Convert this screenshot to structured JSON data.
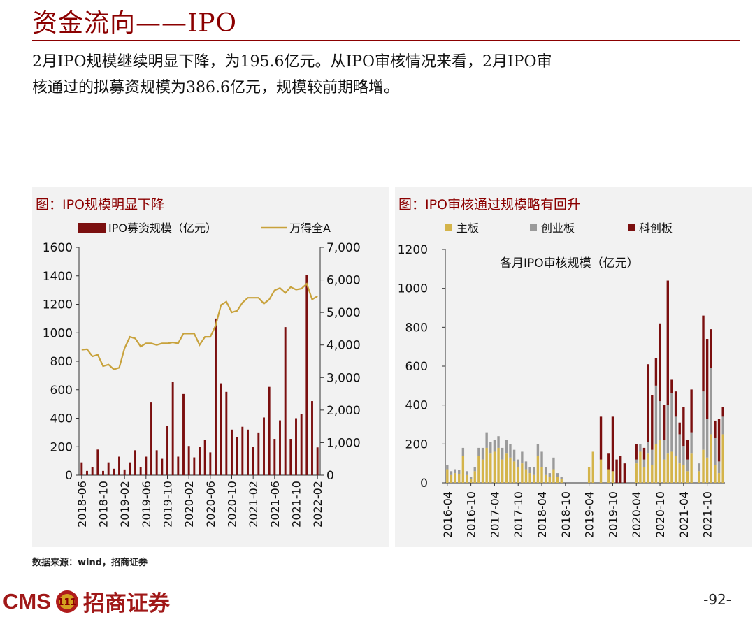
{
  "header": {
    "title": "资金流向——IPO",
    "summary_line1": "2月IPO规模继续明显下降，为195.6亿元。从IPO审核情况来看，2月IPO审",
    "summary_line2": "核通过的拟募资规模为386.6亿元，规模较前期略增。"
  },
  "footer": {
    "source": "数据来源：wind，招商证券",
    "logo_text": "CMS",
    "logo_badge": "111",
    "brand_name": "招商证券",
    "page_number": "-92-"
  },
  "colors": {
    "brand": "#8b0000",
    "bar": "#7b0f0f",
    "line": "#c8a23c",
    "main_board": "#d4b44a",
    "chinext": "#9a9a9a",
    "star": "#7b0f0f"
  },
  "chart_data": [
    {
      "type": "bar",
      "title": "图：IPO规模明显下降",
      "legend_bar": "IPO募资规模（亿元）",
      "legend_line": "万得全A",
      "left_ylim": [
        0,
        1600
      ],
      "left_ticks": [
        "0",
        "200",
        "400",
        "600",
        "800",
        "1000",
        "1200",
        "1400",
        "1600"
      ],
      "right_ylim": [
        0,
        7000
      ],
      "right_ticks": [
        "0",
        "1,000",
        "2,000",
        "3,000",
        "4,000",
        "5,000",
        "6,000",
        "7,000"
      ],
      "xticks": [
        "2018-06",
        "2018-10",
        "2019-02",
        "2019-06",
        "2019-10",
        "2020-02",
        "2020-06",
        "2020-10",
        "2021-02",
        "2021-06",
        "2021-10",
        "2022-02"
      ],
      "categories": [
        "2018-06",
        "2018-07",
        "2018-08",
        "2018-09",
        "2018-10",
        "2018-11",
        "2018-12",
        "2019-01",
        "2019-02",
        "2019-03",
        "2019-04",
        "2019-05",
        "2019-06",
        "2019-07",
        "2019-08",
        "2019-09",
        "2019-10",
        "2019-11",
        "2019-12",
        "2020-01",
        "2020-02",
        "2020-03",
        "2020-04",
        "2020-05",
        "2020-06",
        "2020-07",
        "2020-08",
        "2020-09",
        "2020-10",
        "2020-11",
        "2020-12",
        "2021-01",
        "2021-02",
        "2021-03",
        "2021-04",
        "2021-05",
        "2021-06",
        "2021-07",
        "2021-08",
        "2021-09",
        "2021-10",
        "2021-11",
        "2021-12",
        "2022-01",
        "2022-02"
      ],
      "bar_values": [
        90,
        30,
        55,
        180,
        30,
        90,
        45,
        130,
        40,
        90,
        175,
        55,
        130,
        510,
        175,
        115,
        345,
        655,
        130,
        570,
        205,
        125,
        200,
        250,
        160,
        1100,
        645,
        585,
        320,
        265,
        340,
        320,
        200,
        300,
        405,
        620,
        255,
        385,
        1040,
        255,
        400,
        430,
        1405,
        520,
        195
      ],
      "line_values": [
        3850,
        3870,
        3650,
        3700,
        3350,
        3400,
        3250,
        3300,
        3900,
        4250,
        4200,
        3950,
        4050,
        4050,
        4000,
        4050,
        4050,
        4080,
        4050,
        4350,
        4350,
        4350,
        4000,
        4250,
        4250,
        4600,
        5230,
        5330,
        5000,
        5050,
        5300,
        5450,
        5450,
        5450,
        5270,
        5400,
        5680,
        5750,
        5600,
        5780,
        5700,
        5730,
        5880,
        5400,
        5500
      ]
    },
    {
      "type": "bar",
      "stacked": true,
      "title": "图：IPO审核通过规模略有回升",
      "subtitle": "各月IPO审核规模（亿元）",
      "legend": [
        "主板",
        "创业板",
        "科创板"
      ],
      "ylim": [
        0,
        1200
      ],
      "yticks": [
        "0",
        "200",
        "400",
        "600",
        "800",
        "1000",
        "1200"
      ],
      "xticks": [
        "2016-04",
        "2016-10",
        "2017-04",
        "2017-10",
        "2018-04",
        "2018-10",
        "2019-04",
        "2019-10",
        "2020-04",
        "2020-10",
        "2021-04",
        "2021-10"
      ],
      "categories": [
        "2016-04",
        "2016-05",
        "2016-06",
        "2016-07",
        "2016-08",
        "2016-09",
        "2016-10",
        "2016-11",
        "2016-12",
        "2017-01",
        "2017-02",
        "2017-03",
        "2017-04",
        "2017-05",
        "2017-06",
        "2017-07",
        "2017-08",
        "2017-09",
        "2017-10",
        "2017-11",
        "2017-12",
        "2018-01",
        "2018-02",
        "2018-03",
        "2018-04",
        "2018-05",
        "2018-06",
        "2018-07",
        "2018-08",
        "2018-09",
        "2018-10",
        "2018-11",
        "2018-12",
        "2019-01",
        "2019-02",
        "2019-03",
        "2019-04",
        "2019-05",
        "2019-06",
        "2019-07",
        "2019-08",
        "2019-09",
        "2019-10",
        "2019-11",
        "2019-12",
        "2020-01",
        "2020-02",
        "2020-03",
        "2020-04",
        "2020-05",
        "2020-06",
        "2020-07",
        "2020-08",
        "2020-09",
        "2020-10",
        "2020-11",
        "2020-12",
        "2021-01",
        "2021-02",
        "2021-03",
        "2021-04",
        "2021-05",
        "2021-06",
        "2021-07",
        "2021-08",
        "2021-09",
        "2021-10",
        "2021-11",
        "2021-12",
        "2022-01",
        "2022-02"
      ],
      "series": [
        {
          "name": "主板",
          "values": [
            70,
            40,
            50,
            45,
            140,
            40,
            20,
            60,
            140,
            120,
            180,
            150,
            160,
            180,
            120,
            150,
            130,
            110,
            80,
            100,
            70,
            50,
            40,
            140,
            80,
            40,
            30,
            70,
            30,
            20,
            0,
            0,
            0,
            0,
            0,
            0,
            80,
            160,
            0,
            120,
            0,
            70,
            60,
            0,
            0,
            0,
            0,
            0,
            100,
            160,
            80,
            150,
            90,
            200,
            220,
            120,
            150,
            160,
            140,
            100,
            90,
            60,
            150,
            0,
            60,
            170,
            130,
            250,
            90,
            50,
            250
          ]
        },
        {
          "name": "创业板",
          "values": [
            20,
            20,
            20,
            20,
            40,
            20,
            10,
            20,
            40,
            60,
            80,
            60,
            60,
            60,
            60,
            70,
            70,
            60,
            40,
            60,
            40,
            30,
            40,
            60,
            80,
            40,
            20,
            60,
            20,
            10,
            0,
            0,
            0,
            0,
            0,
            0,
            0,
            0,
            0,
            0,
            0,
            0,
            0,
            0,
            0,
            0,
            0,
            0,
            20,
            40,
            40,
            60,
            80,
            300,
            200,
            100,
            250,
            300,
            200,
            150,
            100,
            60,
            110,
            0,
            40,
            300,
            200,
            340,
            140,
            60,
            90
          ]
        },
        {
          "name": "科创板",
          "values": [
            0,
            0,
            0,
            0,
            0,
            0,
            0,
            0,
            0,
            0,
            0,
            0,
            0,
            0,
            0,
            0,
            0,
            0,
            0,
            0,
            0,
            0,
            0,
            0,
            0,
            0,
            0,
            0,
            0,
            0,
            0,
            0,
            0,
            0,
            0,
            0,
            0,
            0,
            0,
            220,
            0,
            80,
            280,
            120,
            140,
            100,
            0,
            0,
            80,
            0,
            60,
            400,
            280,
            140,
            400,
            180,
            640,
            70,
            130,
            60,
            200,
            100,
            220,
            0,
            0,
            390,
            410,
            200,
            90,
            220,
            50
          ]
        }
      ]
    }
  ]
}
